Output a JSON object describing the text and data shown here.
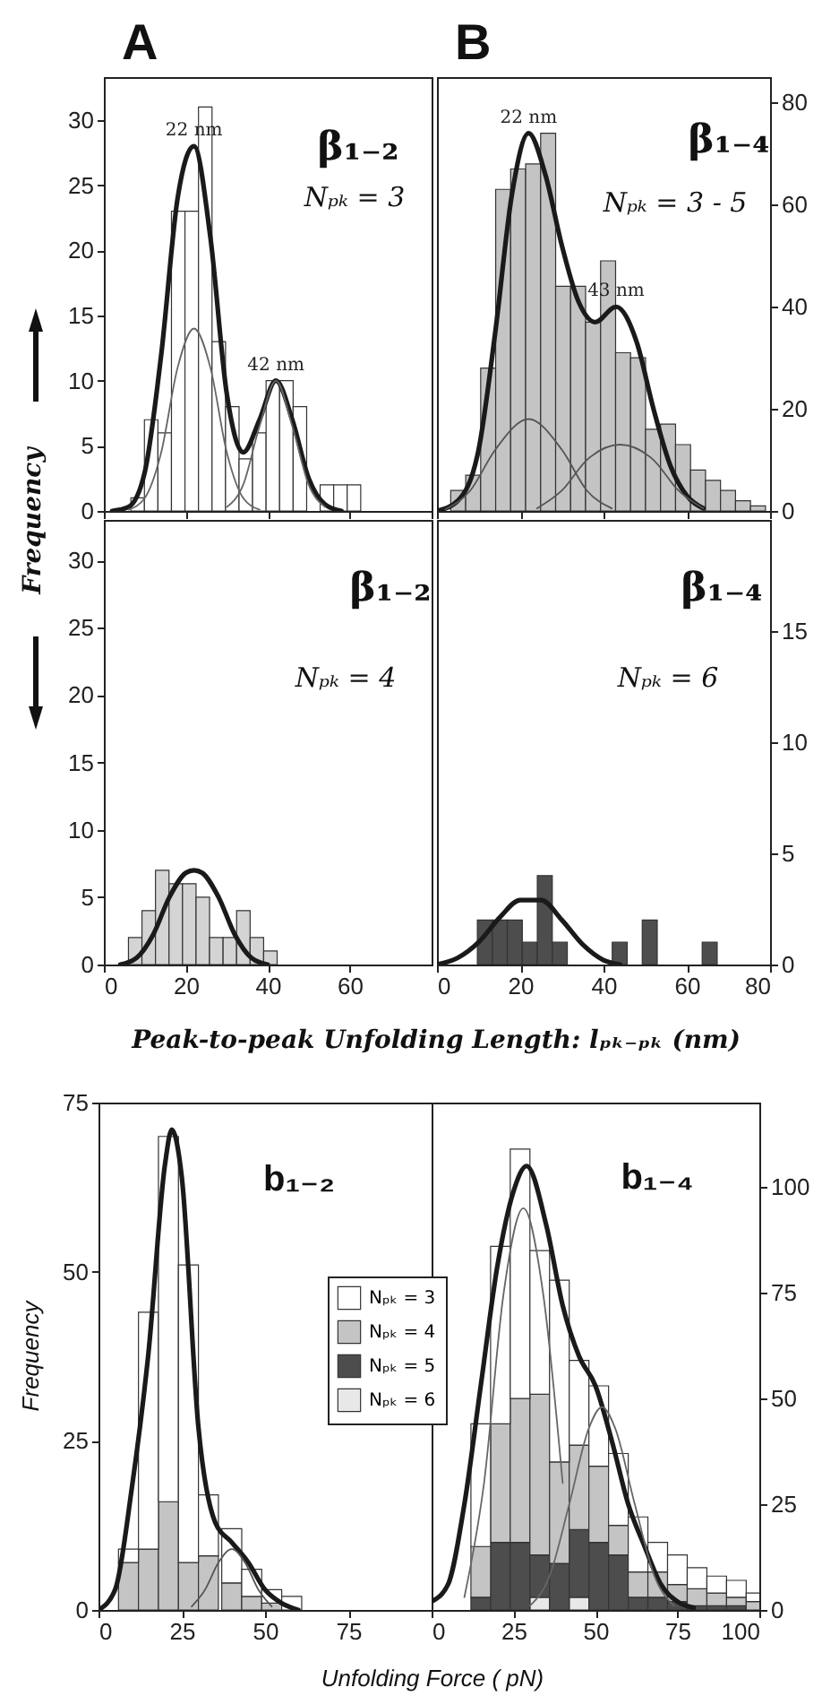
{
  "chart_data": [
    {
      "type": "histogram",
      "title": "A",
      "ylabel": "Frequency",
      "xlim": [
        0,
        80
      ],
      "xticks": [
        0,
        20,
        40,
        60,
        80
      ],
      "ylim": [
        0,
        33.3
      ],
      "yticks": [
        0,
        5,
        10,
        15,
        20,
        25,
        30
      ],
      "tick_labels": "y",
      "bins": [
        6.6,
        9.9,
        13.2,
        16.5,
        19.8,
        23.1,
        26.4,
        29.7,
        33,
        36.3,
        39.6,
        42.9,
        46.2,
        49.5,
        52.8,
        56.1,
        59.4,
        62.7
      ],
      "series": [
        {
          "color": "#ffffff",
          "values": [
            1,
            7,
            6,
            23,
            23,
            31,
            13,
            8,
            4,
            6,
            10,
            10,
            8,
            0,
            2,
            2,
            2
          ]
        },
        {
          "type": "line",
          "color": "#1a1a1a",
          "x": [
            2,
            6,
            10,
            14,
            18,
            22,
            26,
            30,
            34,
            38,
            42,
            46,
            50,
            54,
            58
          ],
          "values": [
            0,
            0.3,
            3,
            12,
            24,
            28,
            21,
            9,
            4.5,
            7,
            10,
            7,
            2.5,
            0.5,
            0
          ]
        },
        {
          "type": "line",
          "color": "#666666",
          "x": [
            6,
            10,
            14,
            18,
            22,
            26,
            30,
            34,
            38
          ],
          "values": [
            0.1,
            1,
            4.5,
            11,
            14,
            11,
            4.5,
            1,
            0.1
          ]
        },
        {
          "type": "line",
          "color": "#666666",
          "x": [
            30,
            34,
            38,
            42,
            46,
            50,
            54
          ],
          "values": [
            0.3,
            2,
            6.5,
            10,
            6.5,
            2,
            0.3
          ]
        }
      ],
      "annotations": [
        "β₁₋₂",
        "Nₚₖ = 3",
        {
          "text": "22 nm",
          "x": 22,
          "y": 28
        },
        {
          "text": "42 nm",
          "x": 42,
          "y": 10
        }
      ]
    },
    {
      "type": "histogram",
      "title": "B",
      "xlim": [
        0,
        80
      ],
      "xticks": [
        0,
        20,
        40,
        60,
        80
      ],
      "ylim": [
        0,
        85
      ],
      "yticks": [
        0,
        20,
        40,
        60,
        80
      ],
      "tick_labels": "y",
      "bins": [
        3.3,
        6.9,
        10.5,
        14.1,
        17.7,
        21.3,
        24.9,
        28.5,
        32.1,
        35.7,
        39.3,
        42.9,
        46.5,
        50.1,
        53.7,
        57.3,
        60.9,
        64.5,
        68.1,
        71.7,
        75.3,
        78.9
      ],
      "series": [
        {
          "color": "#c4c4c4",
          "values": [
            4,
            7,
            28,
            63,
            67,
            68,
            74,
            44,
            44,
            37,
            49,
            31,
            30,
            16,
            17,
            13,
            8,
            6,
            4,
            2,
            1
          ]
        },
        {
          "type": "line",
          "color": "#1a1a1a",
          "x": [
            0,
            5,
            10,
            14,
            18,
            22,
            26,
            30,
            34,
            38,
            43,
            48,
            52,
            56,
            60,
            64
          ],
          "values": [
            0,
            2,
            12,
            35,
            62,
            74,
            66,
            52,
            41,
            37,
            40,
            33,
            20,
            9,
            3,
            0.5
          ]
        },
        {
          "type": "line",
          "color": "#555555",
          "x": [
            2,
            8,
            14,
            22,
            30,
            36,
            42
          ],
          "values": [
            0.3,
            4,
            12,
            18,
            12,
            4,
            0.5
          ]
        },
        {
          "type": "line",
          "color": "#555555",
          "x": [
            24,
            30,
            36,
            44,
            52,
            58,
            64
          ],
          "values": [
            0.5,
            4,
            10,
            13,
            10,
            4,
            0.5
          ]
        }
      ],
      "annotations": [
        "β₁₋₄",
        "Nₚₖ = 3 - 5",
        {
          "text": "22 nm",
          "x": 22,
          "y": 74
        },
        {
          "text": "43 nm",
          "x": 43,
          "y": 40
        }
      ]
    },
    {
      "type": "histogram",
      "xlabel": "Peak-to-peak Unfolding Length: lₚₖ₋ₚₖ (nm)",
      "xlim": [
        0,
        80
      ],
      "xticks": [
        0,
        20,
        40,
        60
      ],
      "ylim": [
        0,
        33
      ],
      "yticks": [
        0,
        5,
        10,
        15,
        20,
        25,
        30
      ],
      "bins": [
        6,
        9.3,
        12.6,
        15.9,
        19.2,
        22.5,
        25.8,
        29.1,
        32.4,
        35.7,
        39,
        42.3
      ],
      "series": [
        {
          "color": "#d4d4d4",
          "values": [
            2,
            4,
            7,
            6,
            6,
            5,
            2,
            2,
            4,
            2,
            1
          ]
        },
        {
          "type": "line",
          "color": "#1a1a1a",
          "x": [
            4,
            8,
            12,
            16,
            20,
            22,
            24,
            28,
            32,
            36,
            40
          ],
          "values": [
            0,
            0.5,
            2.2,
            5,
            6.8,
            7,
            6.8,
            5,
            2.2,
            0.5,
            0
          ]
        }
      ],
      "annotations": [
        "β₁₋₂",
        "Nₚₖ = 4"
      ]
    },
    {
      "type": "histogram",
      "xlim": [
        0,
        80
      ],
      "xticks": [
        0,
        20,
        40,
        60,
        80
      ],
      "ylim": [
        0,
        20
      ],
      "yticks": [
        0,
        5,
        10,
        15
      ],
      "bins": [
        9.7,
        13.3,
        16.9,
        20.5,
        24.1,
        27.7,
        31.3,
        34.9,
        38.5,
        42.1,
        45.7,
        49.3,
        52.9,
        56.5,
        60.1,
        63.7,
        67.3,
        70.9
      ],
      "series": [
        {
          "color": "#4d4d4d",
          "values": [
            2,
            2,
            2,
            1,
            4,
            1,
            0,
            0,
            0,
            1,
            0,
            2,
            0,
            0,
            0,
            1,
            0
          ]
        },
        {
          "type": "line",
          "color": "#1a1a1a",
          "x": [
            0,
            5,
            10,
            15,
            20,
            25,
            30,
            35,
            40,
            44
          ],
          "values": [
            0,
            0.3,
            1,
            2.1,
            2.9,
            2.9,
            2,
            0.9,
            0.2,
            0
          ]
        }
      ],
      "annotations": [
        "β₁₋₄",
        "Nₚₖ = 6"
      ]
    },
    {
      "type": "bar",
      "ylabel": "Frequency",
      "xlabel": "Unfolding Force ( pN)",
      "xlim": [
        0,
        100
      ],
      "xticks": [
        0,
        25,
        50,
        75
      ],
      "ylim": [
        0,
        75
      ],
      "yticks": [
        0,
        25,
        50,
        75
      ],
      "stacked": true,
      "x": [
        9,
        15,
        21,
        27,
        33,
        40,
        46,
        52,
        58
      ],
      "series": [
        {
          "color": "#c4c4c4",
          "values": [
            7,
            9,
            16,
            7,
            8,
            4,
            2,
            1,
            0
          ]
        },
        {
          "color": "#ffffff",
          "values": [
            2,
            35,
            54,
            44,
            9,
            8,
            4,
            2,
            2
          ]
        },
        {
          "type": "line",
          "color": "#1a1a1a",
          "x": [
            0,
            5,
            10,
            15,
            20,
            22,
            25,
            30,
            35,
            40,
            45,
            50,
            55,
            60
          ],
          "values": [
            0,
            3,
            18,
            38,
            66,
            71,
            64,
            27,
            13,
            10,
            7,
            3,
            1,
            0
          ]
        },
        {
          "type": "line",
          "color": "#555555",
          "x": [
            28,
            32,
            36,
            40,
            44,
            48,
            52
          ],
          "values": [
            0.5,
            3,
            7,
            9,
            7,
            3,
            0.5
          ]
        }
      ],
      "annotations": [
        "b₁₋₂"
      ]
    },
    {
      "type": "bar",
      "xlim": [
        0,
        100
      ],
      "xticks": [
        0,
        25,
        50,
        75,
        100
      ],
      "ylim": [
        0,
        120
      ],
      "yticks": [
        0,
        25,
        50,
        75,
        100
      ],
      "stacked": true,
      "legend": "left",
      "x": [
        15,
        21,
        27,
        33,
        39,
        45,
        51,
        57,
        63,
        69,
        75,
        81,
        87,
        93,
        99
      ],
      "series": [
        {
          "name": "Nₚₖ = 6",
          "color": "#e8e8e8",
          "values": [
            0,
            0,
            0,
            3,
            0,
            3,
            0,
            0,
            0,
            0,
            0,
            0,
            0,
            0,
            0
          ]
        },
        {
          "name": "Nₚₖ = 5",
          "color": "#4d4d4d",
          "values": [
            3,
            16,
            16,
            10,
            11,
            16,
            16,
            13,
            3,
            3,
            2,
            1,
            1,
            1,
            0
          ]
        },
        {
          "name": "Nₚₖ = 4",
          "color": "#c4c4c4",
          "values": [
            12,
            28,
            34,
            38,
            24,
            20,
            18,
            7,
            6,
            6,
            4,
            4,
            3,
            2,
            2
          ]
        },
        {
          "name": "Nₚₖ = 3",
          "color": "#ffffff",
          "values": [
            29,
            42,
            59,
            34,
            43,
            20,
            19,
            17,
            13,
            7,
            7,
            5,
            4,
            4,
            2
          ]
        },
        {
          "type": "line",
          "color": "#1a1a1a",
          "x": [
            0,
            5,
            10,
            15,
            20,
            25,
            29,
            35,
            40,
            45,
            50,
            55,
            60,
            65,
            70,
            75,
            80
          ],
          "values": [
            2,
            6,
            25,
            53,
            81,
            99,
            105,
            91,
            72,
            60,
            53,
            40,
            25,
            15,
            6,
            2,
            0.5
          ]
        },
        {
          "type": "line",
          "color": "#666666",
          "x": [
            10,
            16,
            22,
            28,
            34,
            40
          ],
          "values": [
            3,
            30,
            75,
            95,
            75,
            30
          ]
        },
        {
          "type": "line",
          "color": "#666666",
          "x": [
            30,
            36,
            42,
            48,
            52,
            56,
            62,
            68,
            74
          ],
          "values": [
            1,
            8,
            25,
            43,
            48,
            43,
            25,
            8,
            1
          ]
        }
      ],
      "annotations": [
        "b₁₋₄"
      ]
    }
  ]
}
